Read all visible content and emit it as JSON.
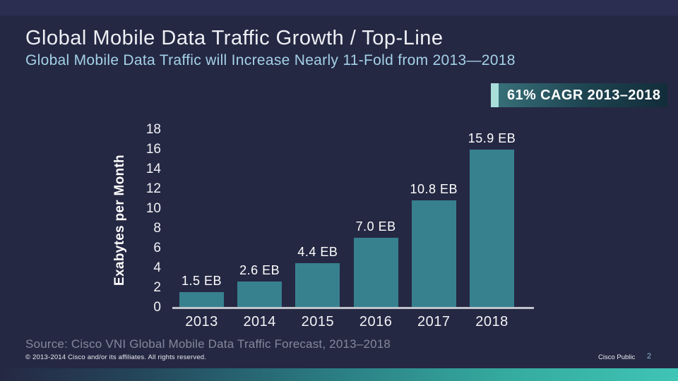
{
  "slide": {
    "title": "Global Mobile Data Traffic Growth / Top-Line",
    "subtitle": "Global Mobile Data Traffic will Increase Nearly 11-Fold from 2013—2018",
    "badge": {
      "text": "61% CAGR 2013–2018"
    },
    "source": "Source: Cisco VNI Global Mobile Data Traffic Forecast, 2013–2018",
    "footer": {
      "copyright": "© 2013-2014 Cisco and/or its affiliates. All rights reserved.",
      "classification": "Cisco Public",
      "page_number": "2"
    }
  },
  "colors": {
    "background": "#252843",
    "bar": "#37818f",
    "subtitle": "#a4d1e8",
    "badge_accent": "#a9ded9",
    "axis_line": "#bfc3cb",
    "bottom_bar_teal": "#3fc4b5"
  },
  "chart_data": {
    "type": "bar",
    "title": "",
    "categories": [
      "2013",
      "2014",
      "2015",
      "2016",
      "2017",
      "2018"
    ],
    "values": [
      1.5,
      2.6,
      4.4,
      7.0,
      10.8,
      15.9
    ],
    "value_labels": [
      "1.5 EB",
      "2.6 EB",
      "4.4 EB",
      "7.0 EB",
      "10.8 EB",
      "15.9 EB"
    ],
    "xlabel": "",
    "ylabel": "Exabytes per Month",
    "yticks": [
      0,
      2,
      4,
      6,
      8,
      10,
      12,
      14,
      16,
      18
    ],
    "ylim": [
      0,
      18
    ],
    "grid": false,
    "legend": "none"
  }
}
